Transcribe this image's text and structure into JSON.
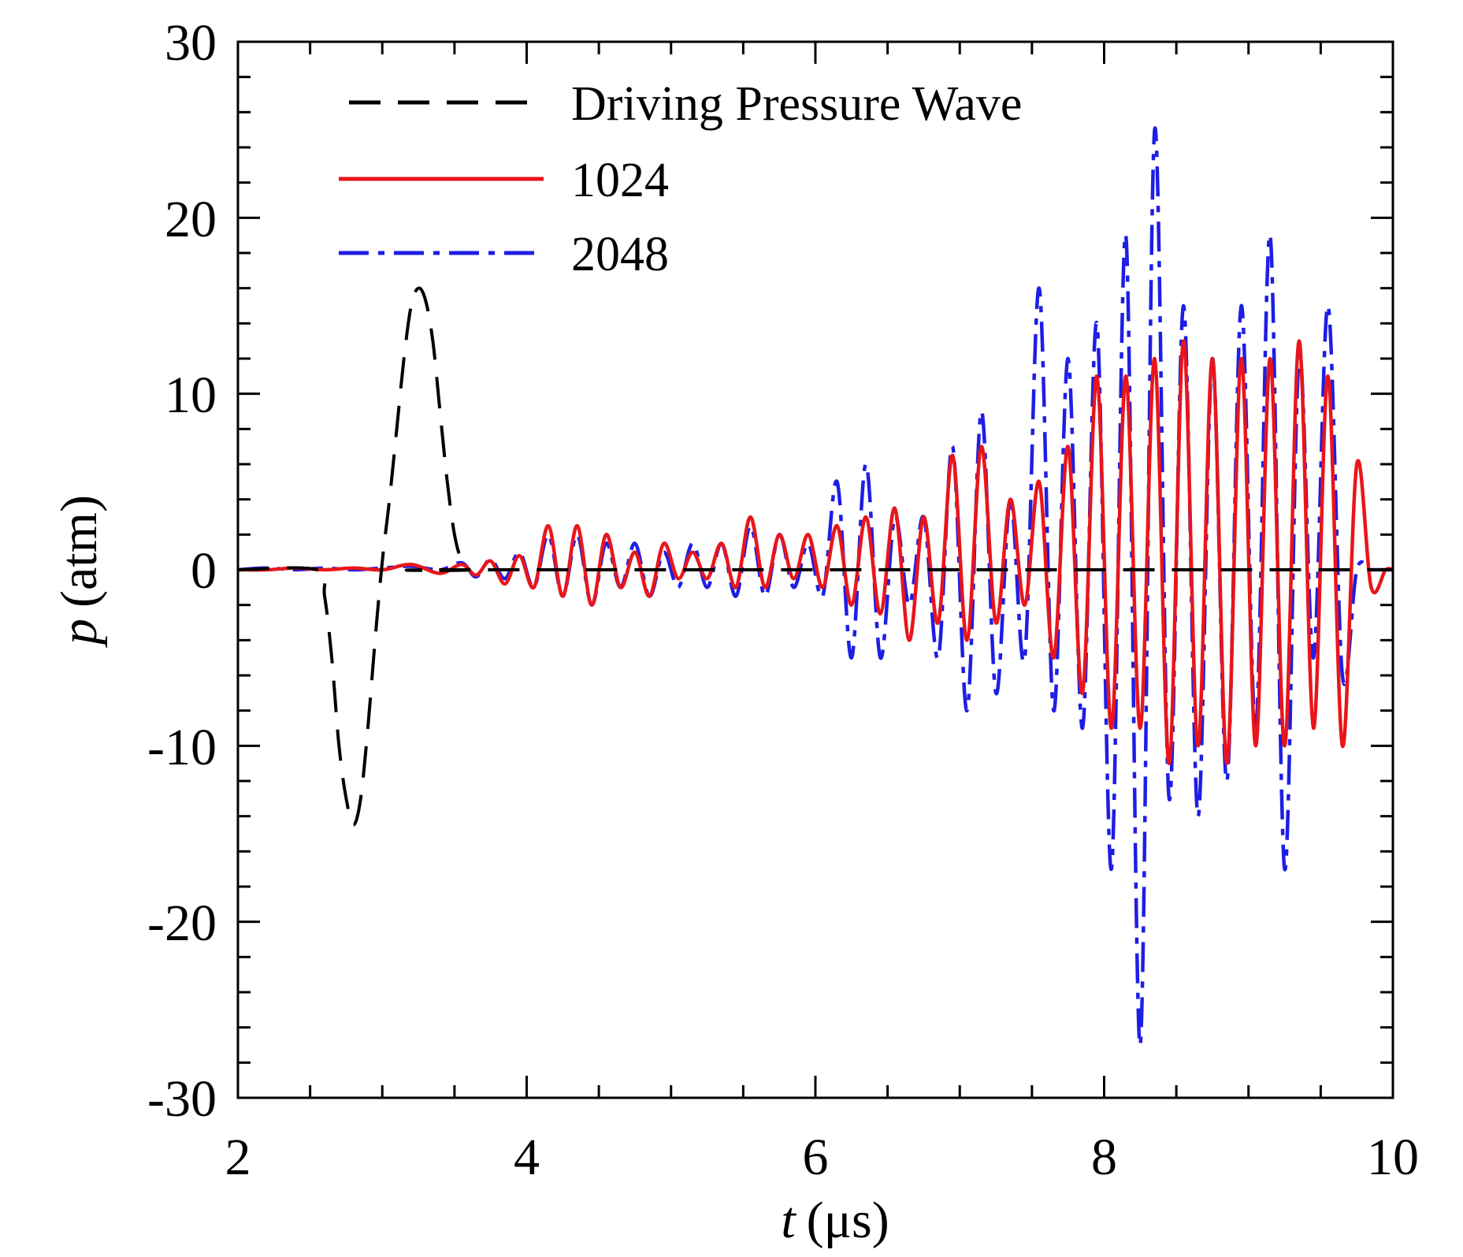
{
  "chart_data": {
    "type": "line",
    "xlabel_symbol": "t",
    "xlabel_unit": "(μs)",
    "ylabel_symbol": "p",
    "ylabel_unit": "(atm)",
    "xlim": [
      2,
      10
    ],
    "ylim": [
      -30,
      30
    ],
    "x_ticks": [
      "2",
      "4",
      "6",
      "8",
      "10"
    ],
    "y_ticks": [
      "-30",
      "-20",
      "-10",
      "0",
      "10",
      "20",
      "30"
    ],
    "legend_position": "top-left",
    "series": [
      {
        "name": "Driving Pressure Wave",
        "color": "#000000",
        "style": "dashed",
        "x": [
          2.0,
          2.55,
          2.6,
          2.65,
          2.7,
          2.75,
          2.8,
          2.85,
          2.9,
          2.95,
          3.0,
          3.05,
          3.1,
          3.15,
          3.2,
          3.25,
          3.3,
          3.35,
          3.4,
          3.45,
          3.5,
          3.55,
          3.6,
          3.65,
          10.0
        ],
        "values": [
          0,
          0,
          -1.5,
          -5,
          -10,
          -13,
          -14.5,
          -13,
          -9,
          -4,
          0.5,
          4,
          8,
          12,
          15,
          16,
          15.3,
          13,
          9,
          5,
          2,
          0.5,
          0,
          0,
          0
        ]
      },
      {
        "name": "1024",
        "color": "#e8161b",
        "style": "solid",
        "x": [
          2.0,
          2.2,
          2.4,
          2.6,
          2.8,
          3.0,
          3.2,
          3.4,
          3.55,
          3.65,
          3.75,
          3.85,
          3.95,
          4.05,
          4.15,
          4.25,
          4.35,
          4.45,
          4.55,
          4.65,
          4.75,
          4.85,
          4.95,
          5.05,
          5.15,
          5.25,
          5.35,
          5.45,
          5.55,
          5.65,
          5.75,
          5.85,
          5.95,
          6.05,
          6.15,
          6.25,
          6.35,
          6.45,
          6.55,
          6.65,
          6.75,
          6.85,
          6.95,
          7.05,
          7.15,
          7.25,
          7.35,
          7.45,
          7.55,
          7.65,
          7.75,
          7.85,
          7.95,
          8.05,
          8.15,
          8.25,
          8.35,
          8.45,
          8.55,
          8.65,
          8.75,
          8.85,
          8.95,
          9.05,
          9.15,
          9.25,
          9.35,
          9.45,
          9.55,
          9.65,
          9.75,
          9.85,
          9.95,
          10.0
        ],
        "values": [
          0,
          0,
          0.1,
          0,
          0.1,
          0,
          0.3,
          -0.2,
          0.3,
          -0.3,
          0.5,
          -0.8,
          0.8,
          -1,
          2.5,
          -1.5,
          2.5,
          -2,
          2,
          -1,
          1,
          -1.5,
          1.5,
          -0.5,
          1,
          -0.5,
          1.5,
          -1,
          3,
          -1,
          2,
          -0.5,
          2,
          -1,
          2.5,
          -2,
          3,
          -2.5,
          3.5,
          -4,
          3,
          -3,
          6.5,
          -4,
          7,
          -3,
          4,
          -2,
          5,
          -5,
          7,
          -7,
          11,
          -9,
          11,
          -9,
          12,
          -11,
          13,
          -10,
          12,
          -11,
          12,
          -10,
          12,
          -10,
          13,
          -9,
          11,
          -10,
          6,
          -1,
          0,
          0
        ]
      },
      {
        "name": "2048",
        "color": "#1e1ee6",
        "style": "dashdot",
        "x": [
          2.0,
          2.2,
          2.4,
          2.6,
          2.8,
          3.0,
          3.2,
          3.4,
          3.55,
          3.65,
          3.75,
          3.85,
          3.95,
          4.05,
          4.15,
          4.25,
          4.35,
          4.45,
          4.55,
          4.65,
          4.75,
          4.85,
          4.95,
          5.05,
          5.15,
          5.25,
          5.35,
          5.45,
          5.55,
          5.65,
          5.75,
          5.85,
          5.95,
          6.05,
          6.15,
          6.25,
          6.35,
          6.45,
          6.55,
          6.65,
          6.75,
          6.85,
          6.95,
          7.05,
          7.15,
          7.25,
          7.35,
          7.45,
          7.55,
          7.65,
          7.75,
          7.85,
          7.95,
          8.05,
          8.15,
          8.25,
          8.35,
          8.45,
          8.55,
          8.65,
          8.75,
          8.85,
          8.95,
          9.05,
          9.15,
          9.25,
          9.35,
          9.45,
          9.55,
          9.65,
          9.75,
          9.85,
          9.95,
          10.0
        ],
        "values": [
          0,
          0.1,
          0,
          0.1,
          0,
          0.1,
          0.2,
          0,
          0.4,
          -0.4,
          0.6,
          -0.5,
          1,
          -1,
          2,
          -1.5,
          2,
          -2,
          1.5,
          -1,
          1.5,
          -1.5,
          1,
          -1,
          1.5,
          -1,
          1.5,
          -1.5,
          2.5,
          -1.5,
          2,
          -1,
          1.5,
          -1.5,
          5,
          -5,
          6,
          -5,
          3,
          -2,
          3,
          -5,
          7,
          -8,
          9,
          -7,
          4,
          -5,
          16,
          -8,
          12,
          -9,
          14,
          -17,
          19,
          -27,
          25,
          -13,
          15,
          -14,
          12,
          -12,
          15,
          -9,
          19,
          -17,
          12,
          -5,
          15,
          -6,
          0,
          0,
          0,
          0
        ]
      }
    ]
  }
}
